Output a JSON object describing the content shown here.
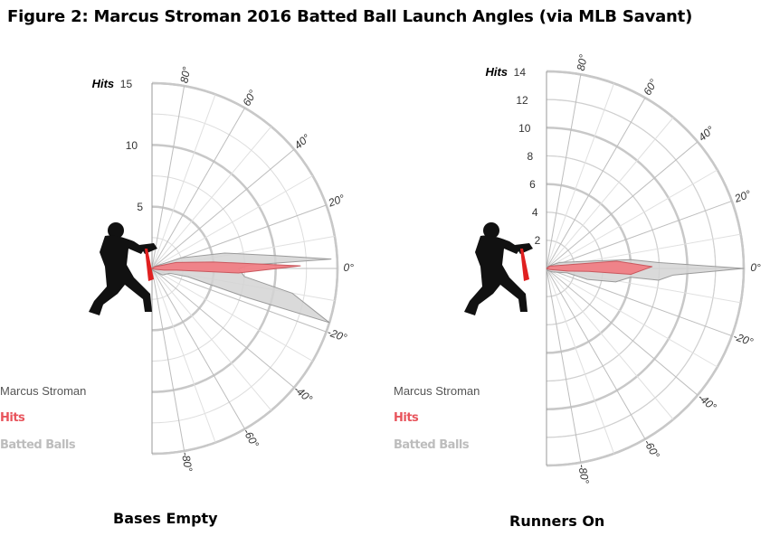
{
  "title": "Figure 2: Marcus Stroman 2016 Batted Ball Launch Angles (via MLB Savant)",
  "legend": {
    "player": "Marcus Stroman",
    "hits": "Hits",
    "batted_balls": "Batted Balls"
  },
  "colors": {
    "hits": "#f07e85",
    "batted_balls": "#d3d3d3",
    "bat": "#e02020",
    "silhouette": "#111111",
    "grid": "#bbbbbb",
    "ring_major": "#c8c8c8"
  },
  "icons": {
    "batter": "batter-silhouette-icon"
  },
  "chart_data": [
    {
      "type": "radar",
      "caption": "Bases Empty",
      "radial_axis_label": "Hits",
      "radial_ticks": [
        5,
        10,
        15
      ],
      "rmax": 15,
      "angle_ticks": [
        "80°",
        "60°",
        "40°",
        "20°",
        "0°",
        "-20°",
        "-40°",
        "-60°",
        "-80°"
      ],
      "series": [
        {
          "name": "Batted Balls",
          "points": [
            [
              0.2,
              45
            ],
            [
              2.5,
              20
            ],
            [
              6,
              12
            ],
            [
              10,
              6
            ],
            [
              14.5,
              3
            ],
            [
              8,
              2
            ],
            [
              7,
              0
            ],
            [
              7.5,
              -5
            ],
            [
              11.5,
              -10
            ],
            [
              15,
              -17
            ],
            [
              8,
              -17
            ],
            [
              3,
              -13
            ],
            [
              1.5,
              -15
            ],
            [
              1,
              -32
            ],
            [
              0.2,
              -60
            ]
          ]
        },
        {
          "name": "Hits",
          "points": [
            [
              0.3,
              30
            ],
            [
              2,
              14
            ],
            [
              5,
              6
            ],
            [
              12,
              1
            ],
            [
              7,
              -3
            ],
            [
              2,
              -4
            ],
            [
              1,
              -8
            ],
            [
              0.2,
              -20
            ]
          ]
        }
      ]
    },
    {
      "type": "radar",
      "caption": "Runners On",
      "radial_axis_label": "Hits",
      "radial_ticks": [
        2,
        4,
        6,
        8,
        10,
        12,
        14
      ],
      "rmax": 14,
      "angle_ticks": [
        "80°",
        "60°",
        "40°",
        "20°",
        "0°",
        "-20°",
        "-40°",
        "-60°",
        "-80°"
      ],
      "series": [
        {
          "name": "Batted Balls",
          "points": [
            [
              0.2,
              50
            ],
            [
              1,
              25
            ],
            [
              4,
              8
            ],
            [
              6,
              6
            ],
            [
              8,
              3
            ],
            [
              14,
              0
            ],
            [
              9,
              -3
            ],
            [
              8,
              -6
            ],
            [
              6,
              -6
            ],
            [
              5,
              -11
            ],
            [
              3,
              -15
            ],
            [
              1.5,
              -12
            ],
            [
              0.5,
              -30
            ],
            [
              0.2,
              -55
            ]
          ]
        },
        {
          "name": "Hits",
          "points": [
            [
              0.3,
              35
            ],
            [
              1.5,
              10
            ],
            [
              5,
              6
            ],
            [
              7.5,
              1
            ],
            [
              6,
              -4
            ],
            [
              3,
              -4
            ],
            [
              1.5,
              -7
            ],
            [
              0.2,
              -20
            ]
          ]
        }
      ]
    }
  ]
}
